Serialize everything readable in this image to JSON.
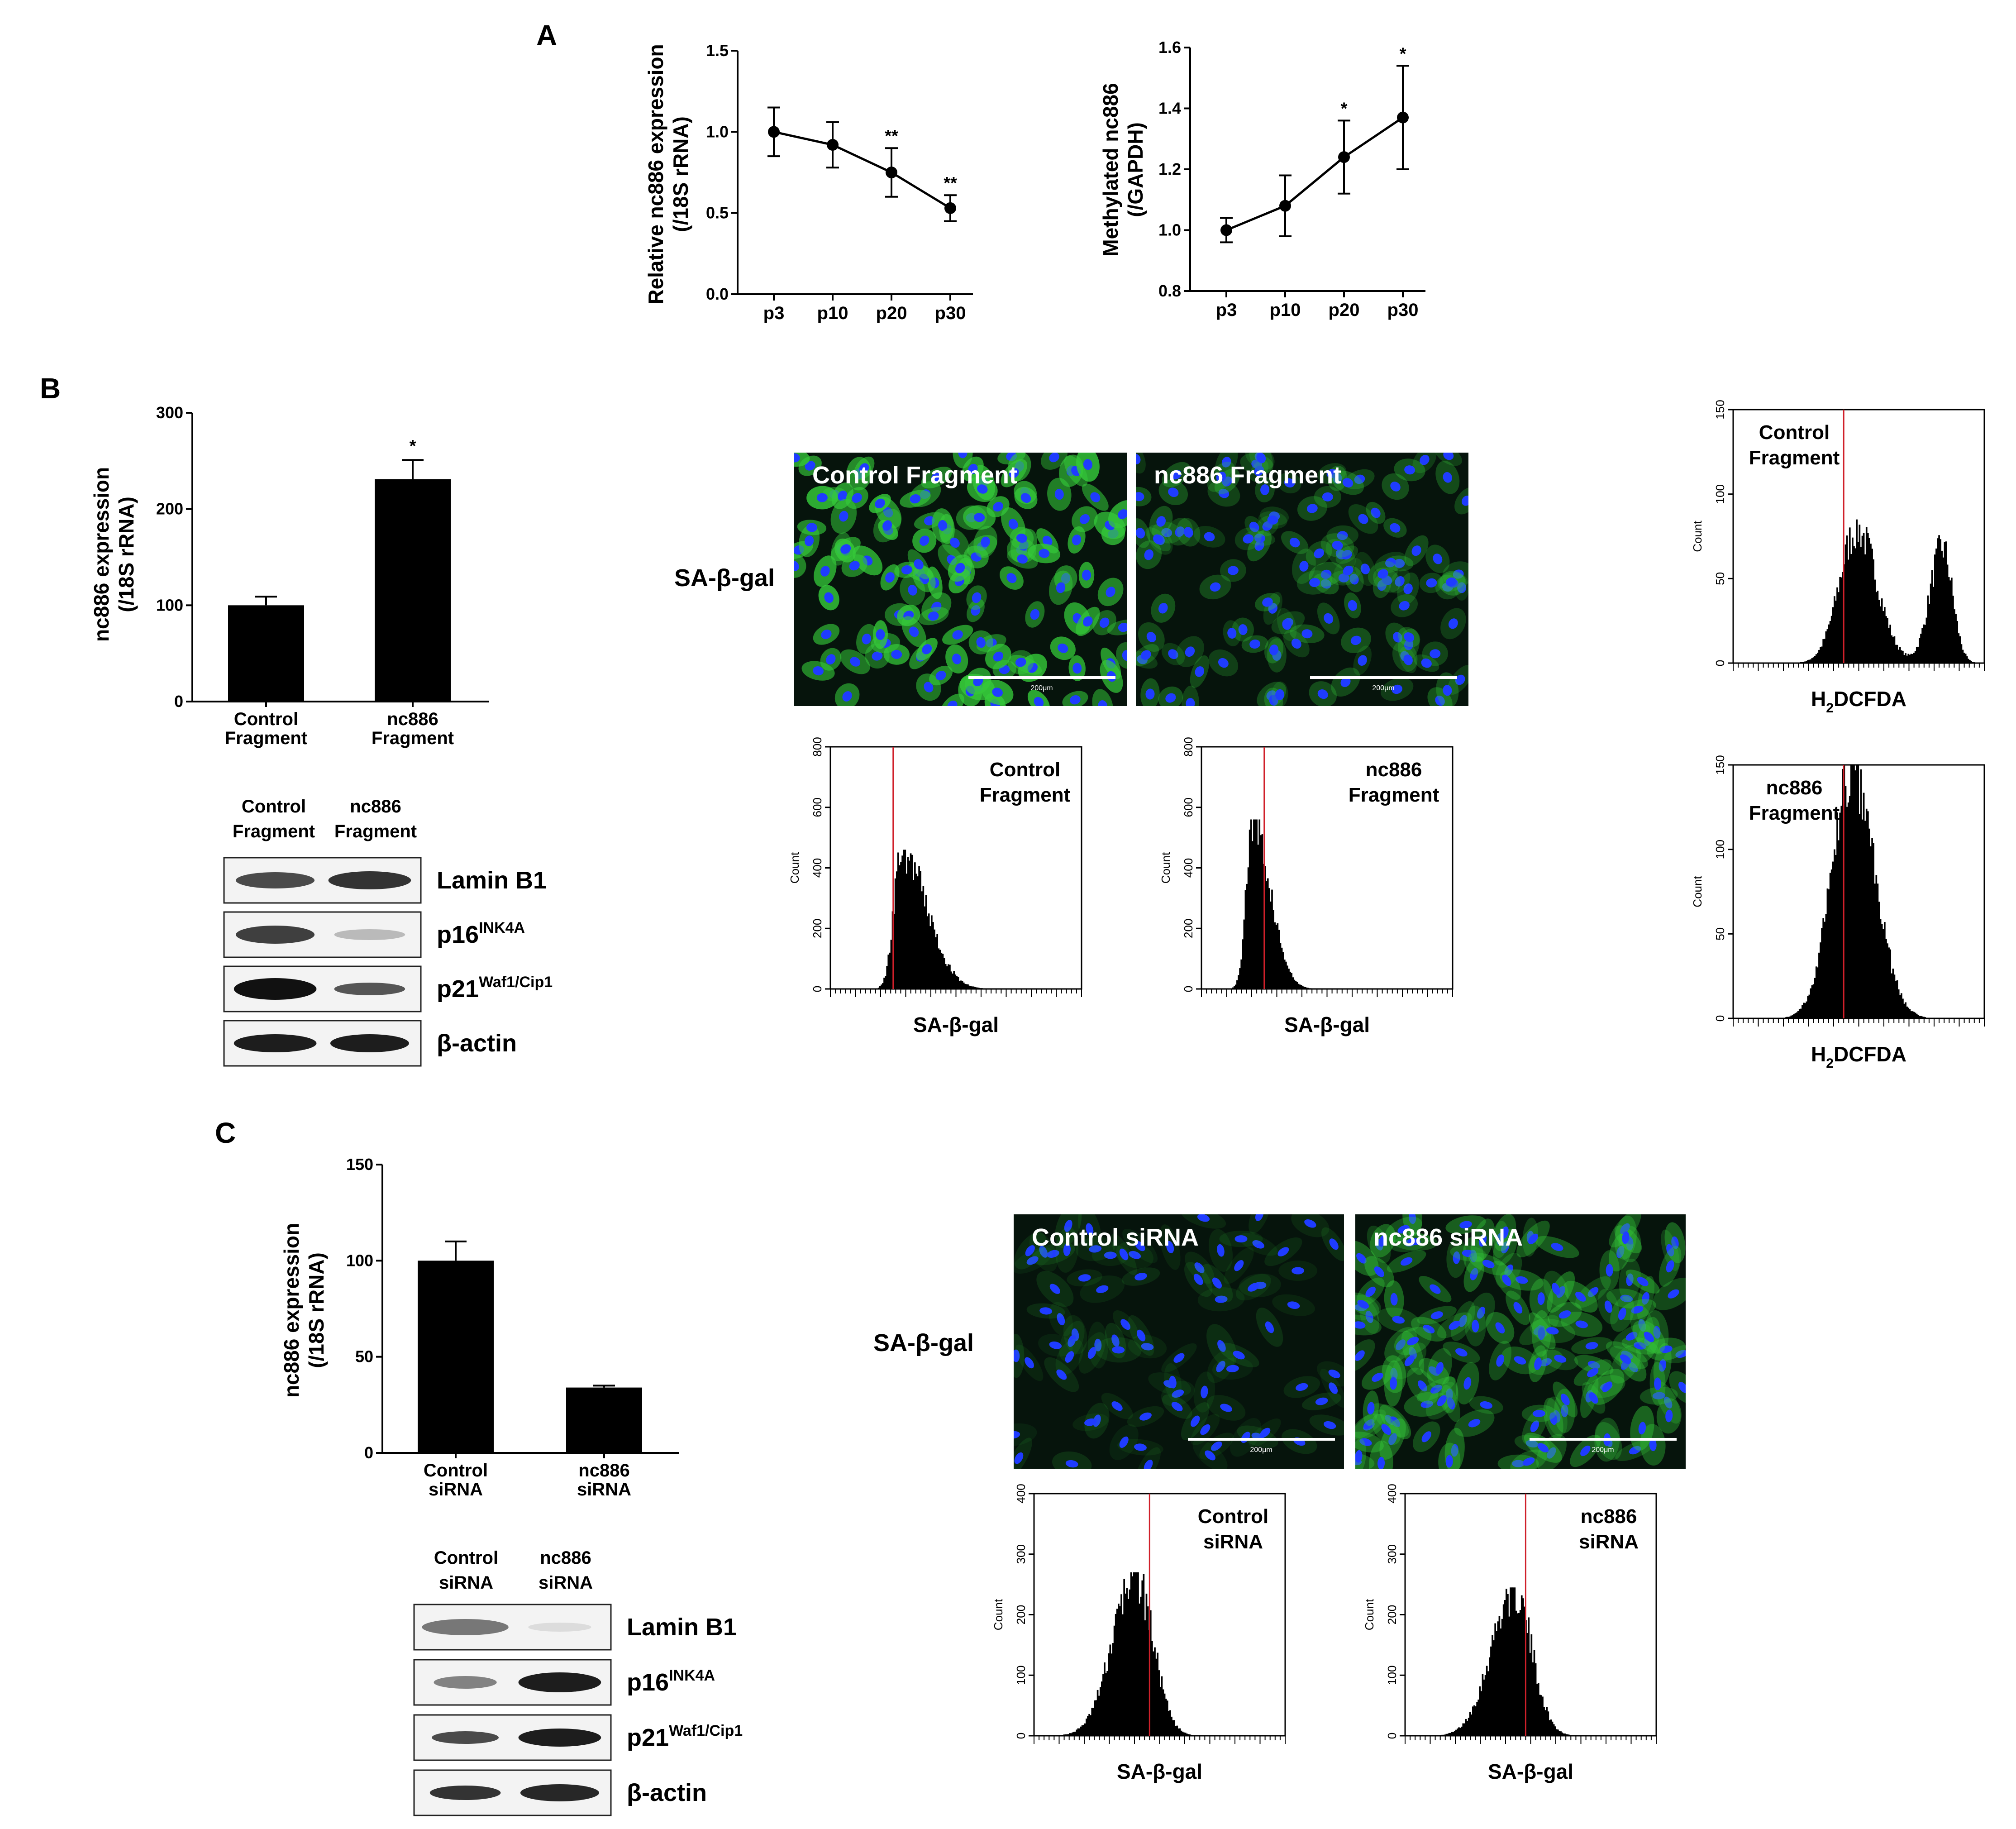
{
  "colors": {
    "bar": "#000000",
    "cutoff": "#d0202a",
    "micro_bg": "#06140c",
    "nucleus": "#1f3cff",
    "cytoplasm": "#35c93a"
  },
  "panel_letters": {
    "A": "A",
    "B": "B",
    "C": "C"
  },
  "chart_data": [
    {
      "id": "A1",
      "type": "line",
      "ylabel_1": "Relative nc886 expression",
      "ylabel_2": "(/18S rRNA)",
      "categories": [
        "p3",
        "p10",
        "p20",
        "p30"
      ],
      "series": [
        {
          "values": [
            1.0,
            0.92,
            0.75,
            0.53
          ],
          "error": [
            0.15,
            0.14,
            0.15,
            0.08
          ]
        }
      ],
      "annotations": [
        "",
        "",
        "**",
        "**"
      ],
      "ylim": [
        0,
        1.5
      ],
      "yticks": [
        "0.0",
        "0.5",
        "1.0",
        "1.5"
      ]
    },
    {
      "id": "A2",
      "type": "line",
      "ylabel_1": "Methylated nc886",
      "ylabel_2": "(/GAPDH)",
      "categories": [
        "p3",
        "p10",
        "p20",
        "p30"
      ],
      "series": [
        {
          "values": [
            1.0,
            1.08,
            1.24,
            1.37
          ],
          "error": [
            0.04,
            0.1,
            0.12,
            0.17
          ]
        }
      ],
      "annotations": [
        "",
        "",
        "*",
        "*"
      ],
      "ylim": [
        0.8,
        1.6
      ],
      "yticks": [
        "0.8",
        "1.0",
        "1.2",
        "1.4",
        "1.6"
      ]
    },
    {
      "id": "B1",
      "type": "bar",
      "ylabel_1": "nc886 expression",
      "ylabel_2": "(/18S rRNA)",
      "categories": [
        [
          "Control",
          "Fragment"
        ],
        [
          "nc886",
          "Fragment"
        ]
      ],
      "values": [
        100,
        231
      ],
      "error": [
        9,
        20
      ],
      "annotations": [
        "",
        "*"
      ],
      "ylim": [
        0,
        300
      ],
      "yticks": [
        "0",
        "100",
        "200",
        "300"
      ]
    },
    {
      "id": "C1",
      "type": "bar",
      "ylabel_1": "nc886 expression",
      "ylabel_2": "(/18S rRNA)",
      "categories": [
        [
          "Control",
          "siRNA"
        ],
        [
          "nc886",
          "siRNA"
        ]
      ],
      "values": [
        100,
        34
      ],
      "error": [
        10,
        1
      ],
      "annotations": [
        "",
        ""
      ],
      "ylim": [
        0,
        150
      ],
      "yticks": [
        "0",
        "50",
        "100",
        "150"
      ]
    }
  ],
  "blots": {
    "B": {
      "headers": [
        [
          "Control",
          "Fragment"
        ],
        [
          "nc886",
          "Fragment"
        ]
      ],
      "rows": [
        {
          "label": "Lamin B1",
          "sup": ""
        },
        {
          "label": "p16",
          "sup": "INK4A"
        },
        {
          "label": "p21",
          "sup": "Waf1/Cip1"
        },
        {
          "label": "β-actin",
          "sup": ""
        }
      ]
    },
    "C": {
      "headers": [
        [
          "Control",
          "siRNA"
        ],
        [
          "nc886",
          "siRNA"
        ]
      ],
      "rows": [
        {
          "label": "Lamin B1",
          "sup": ""
        },
        {
          "label": "p16",
          "sup": "INK4A"
        },
        {
          "label": "p21",
          "sup": "Waf1/Cip1"
        },
        {
          "label": "β-actin",
          "sup": ""
        }
      ]
    }
  },
  "micro": {
    "B_row_label": "SA-β-gal",
    "C_row_label": "SA-β-gal",
    "B_left": "Control Fragment",
    "B_right": "nc886 Fragment",
    "C_left": "Control siRNA",
    "C_right": "nc886 siRNA",
    "scale": "200μm"
  },
  "flow": {
    "B_sagal_ctrl": {
      "xlabel": "SA-β-gal",
      "ylabel": "Count",
      "label": [
        "Control",
        "Fragment"
      ],
      "yticks": [
        "0",
        "200",
        "400",
        "600",
        "800"
      ],
      "peak": 460
    },
    "B_sagal_nc": {
      "xlabel": "SA-β-gal",
      "ylabel": "Count",
      "label": [
        "nc886",
        "Fragment"
      ],
      "yticks": [
        "0",
        "200",
        "400",
        "600",
        "800"
      ],
      "peak": 560
    },
    "B_h2_ctrl": {
      "xlabel_main": "H",
      "xlabel_sub": "2",
      "xlabel_rest": "DCFDA",
      "ylabel": "Count",
      "label": [
        "Control",
        "Fragment"
      ],
      "yticks": [
        "0",
        "50",
        "100",
        "150"
      ],
      "peak": 85
    },
    "B_h2_nc": {
      "xlabel_main": "H",
      "xlabel_sub": "2",
      "xlabel_rest": "DCFDA",
      "ylabel": "Count",
      "label": [
        "nc886",
        "Fragment"
      ],
      "yticks": [
        "0",
        "50",
        "100",
        "150"
      ],
      "peak": 150
    },
    "C_ctrl": {
      "xlabel": "SA-β-gal",
      "ylabel": "Count",
      "label": [
        "Control",
        "siRNA"
      ],
      "yticks": [
        "0",
        "100",
        "200",
        "300",
        "400"
      ],
      "peak": 270
    },
    "C_nc": {
      "xlabel": "SA-β-gal",
      "ylabel": "Count",
      "label": [
        "nc886",
        "siRNA"
      ],
      "yticks": [
        "0",
        "100",
        "200",
        "300",
        "400"
      ],
      "peak": 245
    }
  }
}
